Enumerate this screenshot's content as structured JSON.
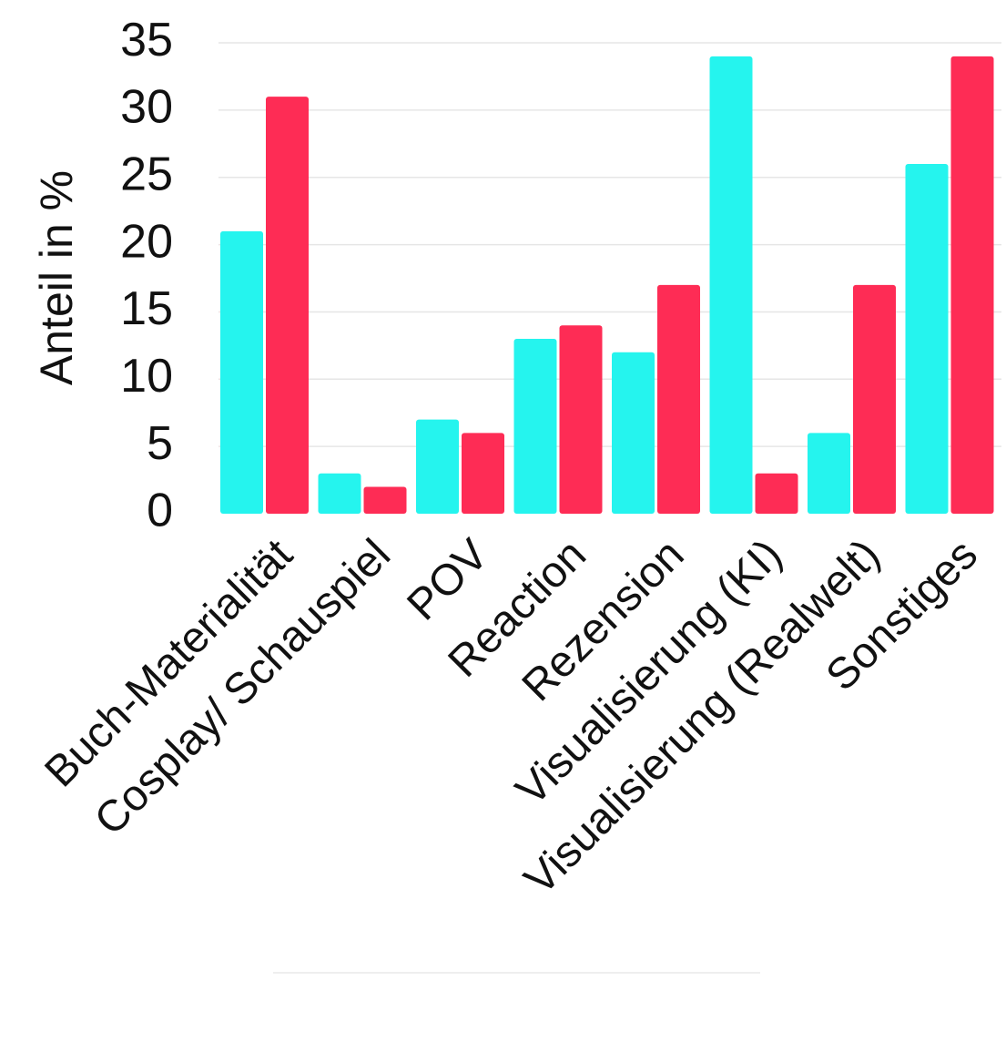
{
  "chart_data": {
    "type": "bar",
    "categories": [
      "Buch-Materialität",
      "Cosplay/ Schauspiel",
      "POV",
      "Reaction",
      "Rezension",
      "Visualisierung (KI)",
      "Visualisierung (Realwelt)",
      "Sonstiges"
    ],
    "series": [
      {
        "color": "#25f4ee",
        "values": [
          21,
          3,
          7,
          13,
          12,
          34,
          6,
          26
        ]
      },
      {
        "color": "#fe2c55",
        "values": [
          31,
          2,
          6,
          14,
          17,
          3,
          17,
          34
        ]
      }
    ],
    "ylabel": "Anteil in %",
    "xlabel": "",
    "title": "",
    "ylim": [
      0,
      35
    ],
    "yticks": [
      0,
      5,
      10,
      15,
      20,
      25,
      30,
      35
    ],
    "grid": true,
    "legend": "none"
  }
}
